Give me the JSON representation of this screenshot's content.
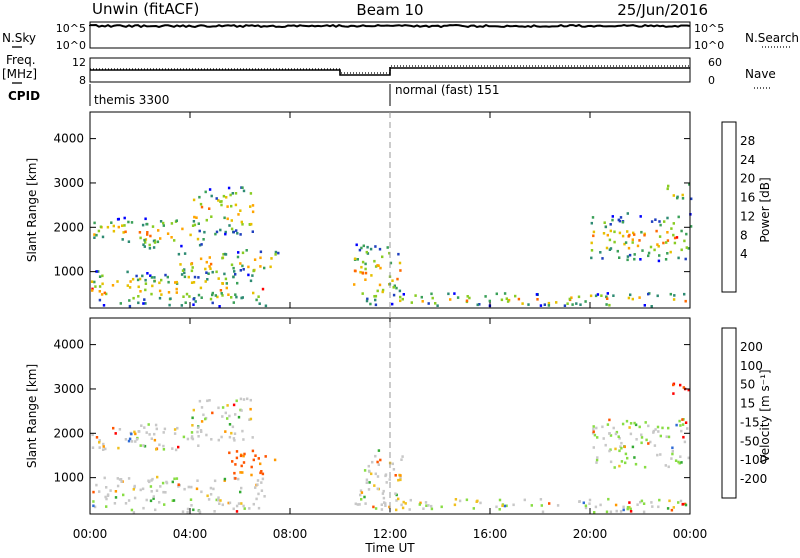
{
  "header": {
    "station": "Unwin (fitACF)",
    "beam": "Beam 10",
    "date": "25/Jun/2016"
  },
  "top_panels": {
    "nsky_label": "N.Sky",
    "nsky_ticks": [
      "10^5",
      "10^0"
    ],
    "nsearch_label": "N.Search",
    "nsearch_ticks": [
      "10^5",
      "10^0"
    ],
    "freq_label": "Freq.",
    "freq_unit": "[MHz]",
    "freq_ticks": [
      "12",
      "8"
    ],
    "nave_label": "Nave",
    "nave_ticks": [
      "60",
      "0"
    ],
    "cpid_label": "CPID",
    "cpid_segments": [
      {
        "start_hour": 0,
        "label": "themis 3300"
      },
      {
        "start_hour": 12,
        "label": "normal (fast) 151"
      }
    ]
  },
  "chart_data": [
    {
      "type": "heatmap",
      "name": "power",
      "ylabel": "Slant Range [km]",
      "yticks": [
        1000,
        2000,
        3000,
        4000
      ],
      "ylim": [
        180,
        4600
      ],
      "colorbar_label": "Power [dB]",
      "colorbar_ticks": [
        "28",
        "24",
        "20",
        "16",
        "12",
        "8",
        "4"
      ],
      "colorbar_colors": [
        "#ff0000",
        "#ff6a00",
        "#ffa500",
        "#e6c000",
        "#88cc22",
        "#3aa058",
        "#2e8b73",
        "#1f3fbf",
        "#0000ff"
      ],
      "regions": [
        {
          "t0": 0.0,
          "t1": 2.0,
          "r0": 1600,
          "r1": 2200
        },
        {
          "t0": 2.0,
          "t1": 4.5,
          "r0": 1500,
          "r1": 2200
        },
        {
          "t0": 4.0,
          "t1": 6.5,
          "r0": 1800,
          "r1": 2900
        },
        {
          "t0": 3.5,
          "t1": 7.5,
          "r0": 900,
          "r1": 1500
        },
        {
          "t0": 0.0,
          "t1": 7.0,
          "r0": 200,
          "r1": 1000
        },
        {
          "t0": 10.5,
          "t1": 12.5,
          "r0": 200,
          "r1": 1600
        },
        {
          "t0": 12.0,
          "t1": 24.0,
          "r0": 200,
          "r1": 500
        },
        {
          "t0": 20.0,
          "t1": 24.0,
          "r0": 1200,
          "r1": 2300
        },
        {
          "t0": 23.0,
          "t1": 24.0,
          "r0": 2600,
          "r1": 3000
        }
      ]
    },
    {
      "type": "heatmap",
      "name": "velocity",
      "xlabel": "Time UT",
      "ylabel": "Slant Range [km]",
      "xticks": [
        "00:00",
        "04:00",
        "08:00",
        "12:00",
        "16:00",
        "20:00",
        "00:00"
      ],
      "yticks": [
        1000,
        2000,
        3000,
        4000
      ],
      "ylim": [
        180,
        4600
      ],
      "colorbar_label": "Velocity [m s⁻¹]",
      "colorbar_ticks": [
        "200",
        "100",
        "50",
        "15",
        "-15",
        "-50",
        "-100",
        "-200"
      ],
      "colorbar_colors": [
        "#1428a0",
        "#2f6bd6",
        "#33aa33",
        "#88dd44",
        "#c8c8c8",
        "#f0c020",
        "#ff9900",
        "#ff5500",
        "#ff0000"
      ],
      "regions": [
        {
          "t0": 0.0,
          "t1": 4.5,
          "r0": 1600,
          "r1": 2200
        },
        {
          "t0": 4.0,
          "t1": 6.5,
          "r0": 1800,
          "r1": 2800
        },
        {
          "t0": 5.5,
          "t1": 7.5,
          "r0": 1000,
          "r1": 1600
        },
        {
          "t0": 0.0,
          "t1": 7.0,
          "r0": 200,
          "r1": 1000
        },
        {
          "t0": 10.5,
          "t1": 12.5,
          "r0": 200,
          "r1": 1600
        },
        {
          "t0": 12.0,
          "t1": 24.0,
          "r0": 200,
          "r1": 500
        },
        {
          "t0": 20.0,
          "t1": 24.0,
          "r0": 1200,
          "r1": 2300
        },
        {
          "t0": 23.2,
          "t1": 24.0,
          "r0": 2700,
          "r1": 3100
        }
      ]
    }
  ]
}
